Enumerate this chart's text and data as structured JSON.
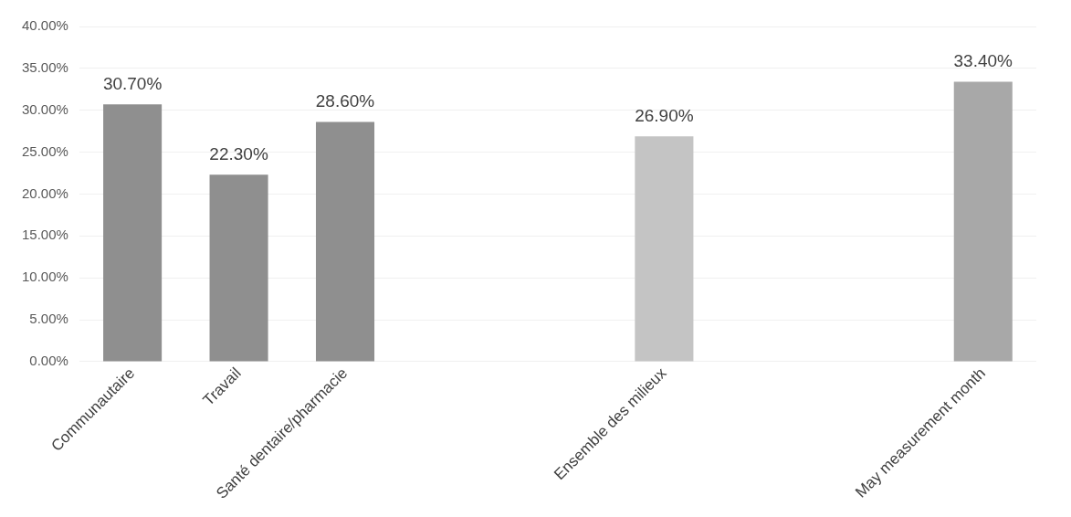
{
  "chart_data": {
    "type": "bar",
    "categories": [
      "Communautaire",
      "Travail",
      "Santé dentaire/pharmacie",
      null,
      null,
      "Ensemble des milieux",
      null,
      null,
      "May measurement month"
    ],
    "values": [
      30.7,
      22.3,
      28.6,
      null,
      null,
      26.9,
      null,
      null,
      33.4
    ],
    "colors": [
      "#8f8f8f",
      "#8f8f8f",
      "#8f8f8f",
      null,
      null,
      "#c4c4c4",
      null,
      null,
      "#a8a8a8"
    ],
    "value_labels": [
      "30.70%",
      "22.30%",
      "28.60%",
      null,
      null,
      "26.90%",
      null,
      null,
      "33.40%"
    ],
    "ylim": [
      0,
      40
    ],
    "yticks": [
      {
        "value": 0,
        "label": "0.00%"
      },
      {
        "value": 5,
        "label": "5.00%"
      },
      {
        "value": 10,
        "label": "10.00%"
      },
      {
        "value": 15,
        "label": "15.00%"
      },
      {
        "value": 20,
        "label": "20.00%"
      },
      {
        "value": 25,
        "label": "25.00%"
      },
      {
        "value": 30,
        "label": "30.00%"
      },
      {
        "value": 35,
        "label": "35.00%"
      },
      {
        "value": 40,
        "label": "40.00%"
      }
    ],
    "grid": "y",
    "legend": false
  }
}
